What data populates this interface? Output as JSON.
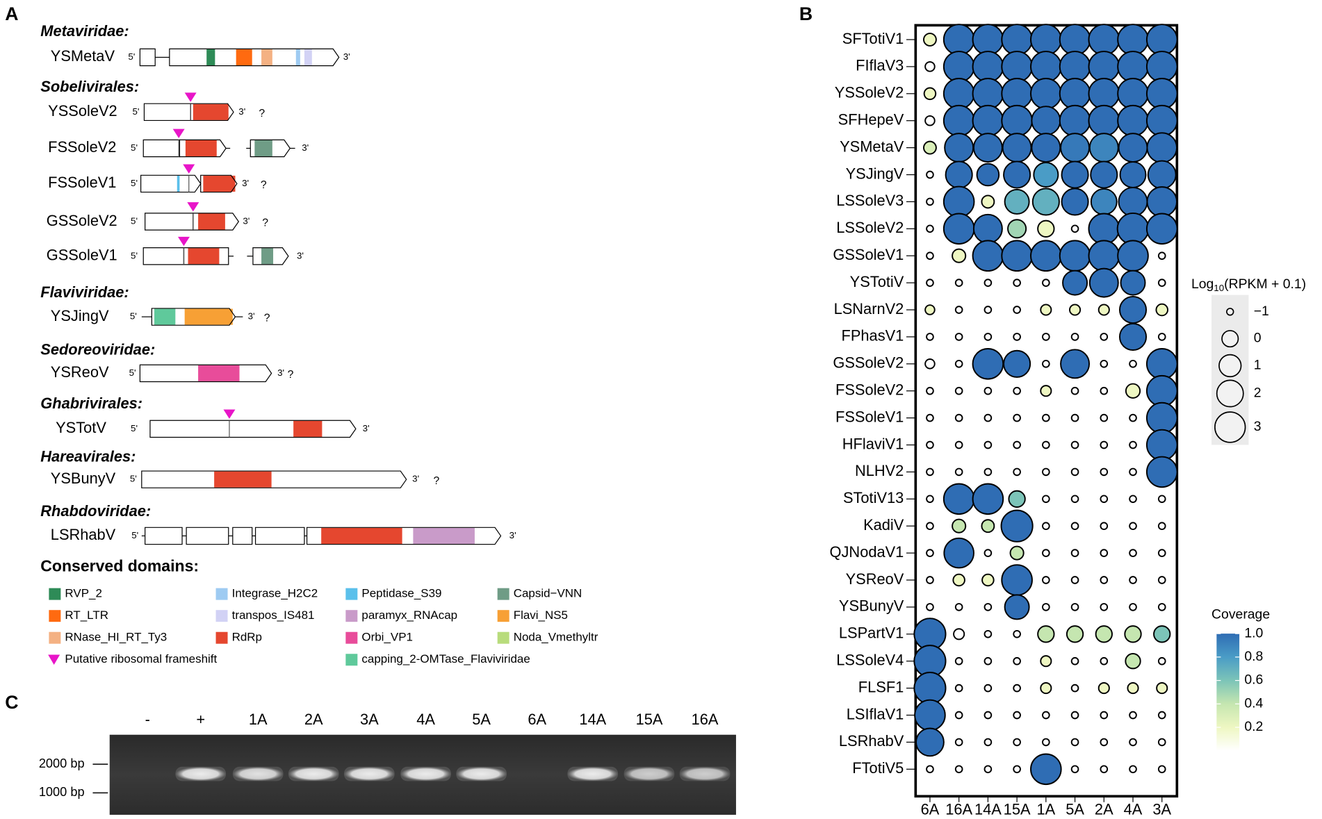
{
  "panel_labels": {
    "a": "A",
    "b": "B",
    "c": "C"
  },
  "panel_a": {
    "five_prime": "5'",
    "three_prime": "3'",
    "unknown": "?",
    "groups": [
      {
        "family": "Metaviridae:",
        "viruses": [
          "YSMetaV"
        ]
      },
      {
        "family": "Sobelivirales:",
        "viruses": [
          "YSSoleV2",
          "FSSoleV2",
          "FSSoleV1",
          "GSSoleV2",
          "GSSoleV1"
        ]
      },
      {
        "family": "Flaviviridae:",
        "viruses": [
          "YSJingV"
        ]
      },
      {
        "family": "Sedoreoviridae:",
        "viruses": [
          "YSReoV"
        ]
      },
      {
        "family": "Ghabrivirales:",
        "viruses": [
          "YSTotV"
        ]
      },
      {
        "family": "Hareavirales:",
        "viruses": [
          "YSBunyV"
        ]
      },
      {
        "family": "Rhabdoviridae:",
        "viruses": [
          "LSRhabV"
        ]
      }
    ],
    "legend_title": "Conserved domains:",
    "domains": [
      {
        "name": "RVP_2",
        "color": "#2e8b57"
      },
      {
        "name": "RT_LTR",
        "color": "#ff6a10"
      },
      {
        "name": "RNase_HI_RT_Ty3",
        "color": "#f4b183"
      },
      {
        "name": "Integrase_H2C2",
        "color": "#9ecbf2"
      },
      {
        "name": "transpos_IS481",
        "color": "#d2d2f5"
      },
      {
        "name": "RdRp",
        "color": "#e5472f"
      },
      {
        "name": "Peptidase_S39",
        "color": "#5bc0eb"
      },
      {
        "name": "paramyx_RNAcap",
        "color": "#c99bc9"
      },
      {
        "name": "Orbi_VP1",
        "color": "#e84c9a"
      },
      {
        "name": "capping_2-OMTase_Flaviviridae",
        "color": "#5fc99b"
      },
      {
        "name": "Capsid−VNN",
        "color": "#6f9c86"
      },
      {
        "name": "Flavi_NS5",
        "color": "#f7a035"
      },
      {
        "name": "Noda_Vmethyltr",
        "color": "#b8dc7c"
      }
    ],
    "frameshift": {
      "name": "Putative ribosomal frameshift",
      "color": "#e815c8"
    }
  },
  "chart_data": {
    "type": "bubble",
    "categories": [
      "6A",
      "16A",
      "14A",
      "15A",
      "1A",
      "5A",
      "2A",
      "4A",
      "3A"
    ],
    "series": [
      {
        "name": "SFTotiV1",
        "values": [
          -0.5,
          3,
          3,
          3,
          3,
          3,
          3,
          3,
          3
        ],
        "coverage": [
          0.2,
          1,
          1,
          1,
          1,
          1,
          1,
          1,
          1
        ]
      },
      {
        "name": "FIflaV3",
        "values": [
          -0.8,
          3,
          3,
          3,
          3,
          3,
          3,
          3,
          3
        ],
        "coverage": [
          0,
          1,
          1,
          1,
          1,
          1,
          1,
          1,
          1
        ]
      },
      {
        "name": "YSSoleV2",
        "values": [
          -0.6,
          3,
          3,
          3,
          3,
          3,
          3,
          3,
          3
        ],
        "coverage": [
          0.2,
          1,
          1,
          1,
          1,
          1,
          1,
          1,
          1
        ]
      },
      {
        "name": "SFHepeV",
        "values": [
          -0.8,
          3,
          3,
          3,
          2.5,
          3,
          3,
          3,
          3
        ],
        "coverage": [
          0,
          1,
          1,
          1,
          1,
          1,
          1,
          1,
          1
        ]
      },
      {
        "name": "YSMetaV",
        "values": [
          -0.5,
          2.5,
          2.5,
          2.5,
          2.5,
          2.5,
          2.5,
          2.5,
          2.8
        ],
        "coverage": [
          0.3,
          1,
          1,
          1,
          1,
          0.95,
          0.9,
          1,
          1
        ]
      },
      {
        "name": "YSJingV",
        "values": [
          -1,
          2,
          1,
          2,
          1.5,
          2,
          2,
          1.8,
          2.3
        ],
        "coverage": [
          0,
          1,
          1,
          1,
          0.8,
          1,
          1,
          1,
          1
        ]
      },
      {
        "name": "LSSoleV3",
        "values": [
          -1,
          3,
          -0.5,
          1.5,
          2,
          2,
          1.8,
          2.5,
          2.8
        ],
        "coverage": [
          0,
          1,
          0.2,
          0.7,
          0.7,
          1,
          0.9,
          1,
          1
        ]
      },
      {
        "name": "LSSoleV2",
        "values": [
          -1,
          3,
          2.5,
          0.3,
          0,
          -1,
          3,
          3.2,
          3
        ],
        "coverage": [
          0,
          1,
          1,
          0.5,
          0.2,
          0,
          1,
          1,
          1
        ]
      },
      {
        "name": "GSSoleV1",
        "values": [
          -1,
          -0.4,
          3,
          3,
          3,
          3,
          3,
          3,
          -1
        ],
        "coverage": [
          0,
          0.2,
          1,
          1,
          1,
          1,
          1,
          1,
          0
        ]
      },
      {
        "name": "YSTotiV",
        "values": [
          -1,
          -1,
          -1,
          -1,
          -1,
          1.5,
          2.5,
          1.5,
          -1
        ],
        "coverage": [
          0,
          0,
          0,
          0,
          0,
          1,
          1,
          1,
          0
        ]
      },
      {
        "name": "LSNarnV2",
        "values": [
          -0.8,
          -1,
          -1,
          -1,
          -0.7,
          -0.7,
          -0.7,
          2,
          -0.6
        ],
        "coverage": [
          0.2,
          0,
          0,
          0,
          0.2,
          0.2,
          0.2,
          1,
          0.2
        ]
      },
      {
        "name": "FPhasV1",
        "values": [
          -1,
          -1,
          -1,
          -1,
          -1,
          -1,
          -1,
          2,
          -1
        ],
        "coverage": [
          0,
          0,
          0,
          0,
          0,
          0,
          0,
          1,
          0
        ]
      },
      {
        "name": "GSSoleV2",
        "values": [
          -0.8,
          -1,
          3,
          2,
          -1,
          2.5,
          -1,
          -1,
          3
        ],
        "coverage": [
          0,
          0,
          1,
          1,
          0,
          1,
          0,
          0,
          1
        ]
      },
      {
        "name": "FSSoleV2",
        "values": [
          -1,
          -1,
          -1,
          -1,
          -0.7,
          -1,
          -1,
          -0.3,
          3
        ],
        "coverage": [
          0,
          0,
          0,
          0,
          0.2,
          0,
          0,
          0.2,
          1
        ]
      },
      {
        "name": "FSSoleV1",
        "values": [
          -1,
          -1,
          -1,
          -1,
          -1,
          -1,
          -1,
          -1,
          3
        ],
        "coverage": [
          0,
          0,
          0,
          0,
          0,
          0,
          0,
          0,
          1
        ]
      },
      {
        "name": "HFlaviV1",
        "values": [
          -1,
          -1,
          -1,
          -1,
          -1,
          -1,
          -1,
          -1,
          3
        ],
        "coverage": [
          0,
          0,
          0,
          0,
          0,
          0,
          0,
          0,
          1
        ]
      },
      {
        "name": "NLHV2",
        "values": [
          -1,
          -1,
          -1,
          -1,
          -1,
          -1,
          -1,
          -1,
          3
        ],
        "coverage": [
          0,
          0,
          0,
          0,
          0,
          0,
          0,
          0,
          1
        ]
      },
      {
        "name": "STotiV13",
        "values": [
          -1,
          3,
          3,
          0,
          -1,
          -1,
          -1,
          -1,
          -1
        ],
        "coverage": [
          0,
          1,
          1,
          0.6,
          0,
          0,
          0,
          0,
          0
        ]
      },
      {
        "name": "KadiV",
        "values": [
          -1,
          -0.4,
          -0.5,
          3.3,
          -1,
          -1,
          -1,
          -1,
          -1
        ],
        "coverage": [
          0,
          0.4,
          0.4,
          1,
          0,
          0,
          0,
          0,
          0
        ]
      },
      {
        "name": "QJNodaV1",
        "values": [
          -1,
          2.8,
          -1,
          -0.4,
          -1,
          -1,
          -1,
          -1,
          -1
        ],
        "coverage": [
          0,
          1,
          0,
          0.4,
          0,
          0,
          0,
          0,
          0
        ]
      },
      {
        "name": "YSReoV",
        "values": [
          -1,
          -0.6,
          -0.6,
          3,
          -1,
          -1,
          -1,
          -1,
          -1
        ],
        "coverage": [
          0,
          0.2,
          0.2,
          1,
          0,
          0,
          0,
          0,
          0
        ]
      },
      {
        "name": "YSBunyV",
        "values": [
          -1,
          -1,
          -1,
          1.5,
          -1,
          -1,
          -1,
          -1,
          -1
        ],
        "coverage": [
          0,
          0,
          0,
          1,
          0,
          0,
          0,
          0,
          0
        ]
      },
      {
        "name": "LSPartV1",
        "values": [
          3.3,
          -0.7,
          -1,
          -1,
          0,
          0,
          0,
          0,
          0
        ],
        "coverage": [
          1,
          0,
          0,
          0,
          0.4,
          0.4,
          0.4,
          0.4,
          0.6
        ]
      },
      {
        "name": "LSSoleV4",
        "values": [
          3.3,
          -1,
          -1,
          -1,
          -0.7,
          -1,
          -1,
          -0.2,
          -1
        ],
        "coverage": [
          1,
          0,
          0,
          0,
          0.2,
          0,
          0,
          0.4,
          0
        ]
      },
      {
        "name": "FLSF1",
        "values": [
          3.3,
          -1,
          -1,
          -1,
          -0.7,
          -1,
          -0.7,
          -0.7,
          -0.7
        ],
        "coverage": [
          1,
          0,
          0,
          0,
          0.2,
          0,
          0.2,
          0.2,
          0.2
        ]
      },
      {
        "name": "LSIflaV1",
        "values": [
          3,
          -1,
          -1,
          -1,
          -1,
          -1,
          -1,
          -1,
          -1
        ],
        "coverage": [
          1,
          0,
          0,
          0,
          0,
          0,
          0,
          0,
          0
        ]
      },
      {
        "name": "LSRhabV",
        "values": [
          2.3,
          -1,
          -1,
          -1,
          -1,
          -1,
          -1,
          -1,
          -1
        ],
        "coverage": [
          1,
          0,
          0,
          0,
          0,
          0,
          0,
          0,
          0
        ]
      },
      {
        "name": "FTotiV5",
        "values": [
          -1,
          -1,
          -1,
          -1,
          3,
          -1,
          -1,
          -1,
          -1
        ],
        "coverage": [
          0,
          0,
          0,
          0,
          1,
          0,
          0,
          0,
          0
        ]
      }
    ],
    "size_legend": {
      "title": [
        "Log",
        "10",
        "(RPKM + 0.1)"
      ],
      "values": [
        {
          "value": -1,
          "label": "−1"
        },
        0,
        1,
        2,
        3
      ]
    },
    "color_legend": {
      "title": "Coverage",
      "lim": [
        0,
        1
      ],
      "ticks": [
        0.2,
        0.4,
        0.6,
        0.8,
        {
          "value": 1,
          "label": "1.0"
        }
      ],
      "colors": [
        "#ffffff",
        "#eef7c2",
        "#c5e6b0",
        "#7cc4b8",
        "#4a9cc6",
        "#2f6db4"
      ]
    }
  },
  "panel_c": {
    "lanes": [
      "-",
      "+",
      "1A",
      "2A",
      "3A",
      "4A",
      "5A",
      "6A",
      "14A",
      "15A",
      "16A"
    ],
    "ladder": [
      "2000 bp",
      "1000 bp"
    ]
  }
}
